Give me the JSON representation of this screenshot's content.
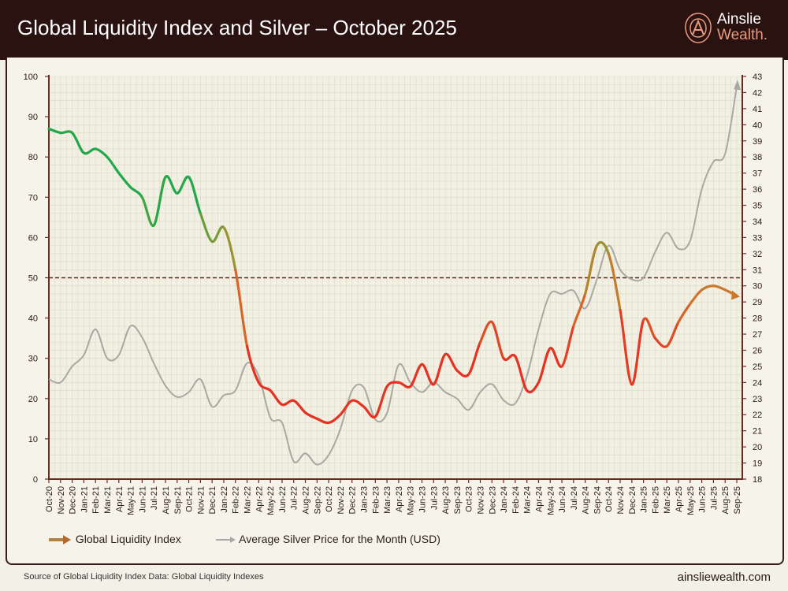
{
  "header": {
    "title": "Global Liquidity Index and Silver – October 2025",
    "logo_line1": "Ainslie",
    "logo_line2": "Wealth."
  },
  "footer": {
    "source": "Source of Global Liquidity Index Data: Global Liquidity Indexes",
    "site": "ainsliewealth.com"
  },
  "colors": {
    "header_bg": "#2a1210",
    "silver": "#a8a8a4",
    "gli_high": "#22a84a",
    "gli_mid": "#c9782c",
    "gli_low": "#e53222",
    "reference_line": "#5a2a20"
  },
  "chart_data": {
    "type": "line",
    "title": "Global Liquidity Index and Silver – October 2025",
    "categories": [
      "Oct-20",
      "Nov-20",
      "Dec-20",
      "Jan-21",
      "Feb-21",
      "Mar-21",
      "Apr-21",
      "May-21",
      "Jun-21",
      "Jul-21",
      "Aug-21",
      "Sep-21",
      "Oct-21",
      "Nov-21",
      "Dec-21",
      "Jan-22",
      "Feb-22",
      "Mar-22",
      "Apr-22",
      "May-22",
      "Jun-22",
      "Jul-22",
      "Aug-22",
      "Sep-22",
      "Oct-22",
      "Nov-22",
      "Dec-22",
      "Jan-23",
      "Feb-23",
      "Mar-23",
      "Apr-23",
      "May-23",
      "Jun-23",
      "Jul-23",
      "Aug-23",
      "Sep-23",
      "Oct-23",
      "Nov-23",
      "Dec-23",
      "Jan-24",
      "Feb-24",
      "Mar-24",
      "Apr-24",
      "May-24",
      "Jun-24",
      "Jul-24",
      "Aug-24",
      "Sep-24",
      "Oct-24",
      "Nov-24",
      "Dec-24",
      "Jan-25",
      "Feb-25",
      "Mar-25",
      "Apr-25",
      "May-25",
      "Jun-25",
      "Jul-25",
      "Aug-25",
      "Sep-25"
    ],
    "series": [
      {
        "name": "Global Liquidity Index",
        "axis": "left",
        "values": [
          87,
          86,
          86,
          81,
          82,
          80,
          76,
          72.5,
          70,
          63,
          75,
          71,
          75,
          66,
          59,
          62.5,
          52,
          33,
          24,
          22,
          18.5,
          19.5,
          16.5,
          15,
          14,
          16,
          19.5,
          18,
          15.5,
          23,
          24,
          23,
          28.5,
          23.5,
          31,
          27,
          26,
          34,
          39,
          30,
          30.5,
          22,
          24,
          32.5,
          28,
          38,
          46,
          58,
          56,
          42,
          23.5,
          39.5,
          35,
          33,
          39,
          43.5,
          47,
          48,
          47,
          45.5
        ]
      },
      {
        "name": "Average Silver Price for the Month (USD)",
        "axis": "right",
        "values": [
          24.2,
          24.0,
          25.0,
          25.7,
          27.3,
          25.5,
          25.7,
          27.5,
          26.8,
          25.2,
          23.8,
          23.1,
          23.4,
          24.2,
          22.5,
          23.2,
          23.5,
          25.2,
          24.4,
          21.8,
          21.5,
          19.1,
          19.6,
          18.9,
          19.5,
          21.1,
          23.5,
          23.7,
          21.7,
          22.1,
          25.1,
          24.0,
          23.4,
          24.0,
          23.4,
          23.0,
          22.3,
          23.4,
          23.9,
          22.9,
          22.7,
          24.4,
          27.3,
          29.5,
          29.5,
          29.7,
          28.6,
          30.4,
          32.5,
          31.0,
          30.4,
          30.5,
          32.1,
          33.3,
          32.3,
          32.8,
          36.0,
          37.7,
          38.2,
          42.4
        ]
      }
    ],
    "left_axis": {
      "range": [
        0,
        100
      ],
      "ticks": [
        0,
        10,
        20,
        30,
        40,
        50,
        60,
        70,
        80,
        90,
        100
      ]
    },
    "right_axis": {
      "range": [
        18,
        43
      ],
      "ticks": [
        18,
        19,
        20,
        21,
        22,
        23,
        24,
        25,
        26,
        27,
        28,
        29,
        30,
        31,
        32,
        33,
        34,
        35,
        36,
        37,
        38,
        39,
        40,
        41,
        42,
        43
      ]
    },
    "reference_line": 50,
    "grid": true,
    "legend_placement": "bottom-left"
  }
}
